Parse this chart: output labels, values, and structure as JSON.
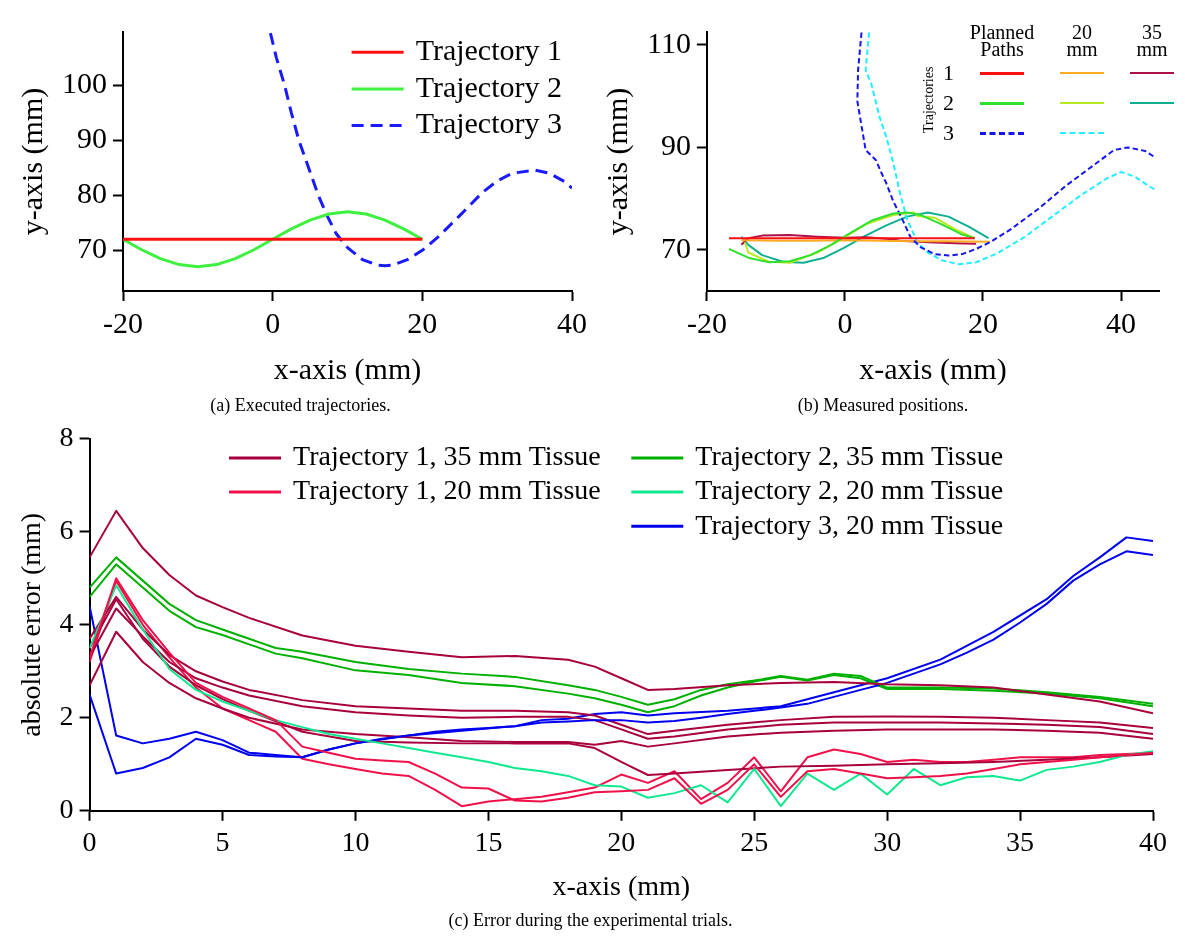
{
  "chart_data": [
    {
      "type": "line",
      "xlabel": "x-axis (mm)",
      "ylabel": "y-axis (mm)",
      "xlim": [
        -20,
        40
      ],
      "ylim": [
        62.6,
        109.7
      ],
      "xticks": [
        -20,
        0,
        20,
        40
      ],
      "yticks": [
        70,
        80,
        90,
        100
      ],
      "legend": "top right",
      "marker": "none",
      "annotations": [
        "(a) Executed trajectories."
      ],
      "series": [
        {
          "name": "Trajectory 1",
          "color": "#ff1010",
          "line_style": "solid",
          "x": [
            -20,
            20
          ],
          "values": [
            72,
            72
          ]
        },
        {
          "name": "Trajectory 2",
          "color": "#40f040",
          "line_style": "solid",
          "x": [
            -20,
            -17.5,
            -15,
            -12.5,
            -10,
            -7.5,
            -5,
            -2.5,
            0,
            2.5,
            5,
            7.5,
            10,
            12.5,
            15,
            17.5,
            20
          ],
          "values": [
            72,
            70.1,
            68.5,
            67.4,
            67,
            67.4,
            68.5,
            70.1,
            72,
            73.9,
            75.5,
            76.6,
            77,
            76.6,
            75.5,
            73.9,
            72
          ]
        },
        {
          "name": "Trajectory 3",
          "color": "#1a1aff",
          "line_style": "dashed",
          "x": [
            -0.3,
            0.5,
            1.6,
            2.5,
            3.5,
            4.8,
            6.1,
            7.2,
            8.5,
            10,
            12,
            14,
            15,
            16,
            18,
            20,
            22,
            25,
            28,
            30,
            32,
            35,
            37,
            39,
            40
          ],
          "values": [
            109.5,
            105,
            100,
            95,
            90,
            85,
            80,
            76.5,
            73,
            70.5,
            68.3,
            67.3,
            67.2,
            67.3,
            68.3,
            70,
            72.3,
            76.3,
            80.5,
            82.6,
            84,
            84.6,
            84,
            82.5,
            81.3
          ]
        }
      ]
    },
    {
      "type": "line",
      "xlabel": "x-axis (mm)",
      "ylabel": "y-axis (mm)",
      "xlim": [
        -20,
        45.5
      ],
      "ylim": [
        62,
        112.5
      ],
      "xticks": [
        -20,
        0,
        20,
        40
      ],
      "yticks": [
        70,
        90,
        110
      ],
      "legend": "top right",
      "legend_title": "Trajectories",
      "marker": "none",
      "annotations": [
        "Planned Paths",
        "20 mm",
        "35 mm",
        "1",
        "2",
        "3",
        "(b) Measured positions."
      ],
      "series": [
        {
          "color": "#ff1010",
          "line_style": "solid",
          "x": [
            -16.8,
            18.8
          ],
          "values": [
            72.3,
            72.3
          ]
        },
        {
          "color": "#30e030",
          "line_style": "solid",
          "x": [
            -16.8,
            -14,
            -11,
            -8,
            -5,
            -2,
            1,
            4,
            7,
            9,
            11,
            14,
            17,
            18.8
          ],
          "values": [
            70.2,
            68.5,
            67.6,
            67.8,
            69,
            71,
            73.5,
            75.8,
            77.1,
            77.3,
            76.8,
            75,
            73,
            72.3
          ]
        },
        {
          "color": "#1515ee",
          "line_style": "dashed",
          "x": [
            2.4,
            1.9,
            1.8,
            2.3,
            3,
            4.5,
            5.3,
            6,
            7,
            8.3,
            9.5,
            11,
            13,
            15,
            17,
            19,
            21,
            24,
            28,
            32,
            36,
            39,
            41,
            43.5,
            45
          ],
          "values": [
            112.4,
            105,
            99,
            95,
            89.5,
            87.5,
            85,
            83,
            79.5,
            76,
            72.5,
            70.5,
            69.2,
            68.9,
            69.2,
            70.2,
            71.5,
            74,
            78,
            82.5,
            86.5,
            89.5,
            90,
            89.3,
            88
          ]
        },
        {
          "color": "#ffaa22",
          "line_style": "solid",
          "x": [
            -15,
            -10,
            -5,
            0,
            5,
            10,
            15,
            21
          ],
          "values": [
            71.9,
            71.8,
            71.8,
            71.9,
            71.8,
            71.7,
            71.7,
            71.6
          ]
        },
        {
          "color": "#b8ea22",
          "line_style": "solid",
          "x": [
            -14.5,
            -14,
            -11,
            -8,
            -4,
            0,
            3,
            7,
            10,
            10.5,
            13,
            16,
            18.8
          ],
          "values": [
            71.5,
            69.5,
            67.7,
            67.5,
            69.5,
            72.5,
            75,
            76.8,
            77.3,
            76.6,
            76.3,
            74,
            72.3
          ]
        },
        {
          "color": "#22eeff",
          "line_style": "dashed",
          "x": [
            3.5,
            3,
            3.8,
            5,
            6,
            7,
            8,
            9,
            10.5,
            12,
            14,
            16.5,
            19,
            22,
            26,
            30,
            34,
            38,
            40,
            42,
            44,
            45
          ],
          "values": [
            112.4,
            105,
            102.5,
            96,
            92,
            87,
            81,
            76,
            71.5,
            69.5,
            68,
            67.2,
            67.6,
            69.3,
            72.5,
            76.5,
            80.5,
            84,
            85.2,
            84.3,
            82.5,
            81.7
          ]
        },
        {
          "color": "#b0104a",
          "line_style": "solid",
          "x": [
            -15,
            -14,
            -12,
            -8,
            -4,
            0,
            3,
            6,
            8,
            12,
            16,
            19
          ],
          "values": [
            71,
            72.3,
            72.8,
            72.9,
            72.6,
            72.4,
            72.5,
            72.2,
            71.8,
            71.5,
            71.3,
            71.2
          ]
        },
        {
          "color": "#10b090",
          "line_style": "solid",
          "x": [
            -15,
            -14,
            -12,
            -9,
            -6,
            -3,
            0,
            3,
            6,
            9,
            12,
            15,
            18,
            20.8
          ],
          "values": [
            72.6,
            71,
            69,
            67.7,
            67.5,
            68.5,
            70.5,
            72.8,
            74.8,
            76.5,
            77.3,
            76.5,
            74.5,
            72.3
          ]
        }
      ]
    },
    {
      "type": "line",
      "xlabel": "x-axis (mm)",
      "ylabel": "absolute error (mm)",
      "xlim": [
        0,
        40
      ],
      "ylim": [
        0,
        8
      ],
      "xticks": [
        0,
        5,
        10,
        15,
        20,
        25,
        30,
        35,
        40
      ],
      "yticks": [
        0,
        2,
        4,
        6,
        8
      ],
      "legend": "top",
      "marker": "none",
      "line_style": "solid",
      "annotations": [
        "(c) Error during the experimental trials."
      ],
      "x": [
        0,
        1,
        2,
        3,
        4,
        5,
        6,
        7,
        8,
        9,
        10,
        11,
        12,
        13,
        14,
        15,
        16,
        17,
        18,
        19,
        20,
        21,
        22,
        23,
        24,
        25,
        26,
        27,
        28,
        29,
        30,
        31,
        32,
        33,
        34,
        35,
        36,
        37,
        38,
        39,
        40
      ],
      "series": [
        {
          "name": "Trajectory 1, 35 mm Tissue",
          "color": "#a8003c",
          "x": [
            0,
            1,
            2,
            3,
            4,
            5,
            6,
            8,
            10,
            12,
            14,
            16,
            18,
            19,
            20,
            21,
            22,
            24,
            26,
            28,
            30,
            32,
            34,
            36,
            38,
            40
          ],
          "values": [
            5.45,
            6.45,
            5.65,
            5.07,
            4.63,
            4.38,
            4.15,
            3.77,
            3.55,
            3.42,
            3.3,
            3.33,
            3.25,
            3.1,
            2.85,
            2.6,
            2.62,
            2.7,
            2.75,
            2.77,
            2.72,
            2.7,
            2.65,
            2.5,
            2.35,
            2.1
          ]
        },
        {
          "name": "Trajectory 1, 20 mm Tissue",
          "color": "#f0104a",
          "values": [
            3.3,
            5.0,
            4.1,
            3.4,
            2.75,
            2.45,
            2.2,
            1.95,
            1.38,
            1.25,
            1.12,
            1.08,
            1.05,
            0.8,
            0.5,
            0.48,
            0.22,
            0.2,
            0.28,
            0.4,
            0.42,
            0.45,
            0.7,
            0.15,
            0.45,
            1.0,
            0.3,
            0.85,
            0.9,
            0.8,
            0.7,
            0.72,
            0.75,
            0.8,
            0.9,
            1.0,
            1.05,
            1.1,
            1.15,
            1.2,
            1.25
          ]
        },
        {
          "name": "Trajectory 2, 35 mm Tissue",
          "color": "#00b000",
          "x": [
            0,
            1,
            2,
            3,
            4,
            5,
            6,
            7,
            8,
            10,
            12,
            14,
            16,
            18,
            19,
            20,
            21,
            22,
            23,
            24,
            25,
            26,
            27,
            28,
            29,
            30,
            32,
            34,
            36,
            38,
            40
          ],
          "values": [
            4.8,
            5.45,
            4.95,
            4.45,
            4.1,
            3.9,
            3.7,
            3.5,
            3.42,
            3.2,
            3.05,
            2.95,
            2.88,
            2.7,
            2.6,
            2.45,
            2.28,
            2.4,
            2.6,
            2.72,
            2.8,
            2.9,
            2.82,
            2.95,
            2.9,
            2.65,
            2.65,
            2.63,
            2.55,
            2.45,
            2.3
          ]
        },
        {
          "name": "Trajectory 2, 20 mm Tissue",
          "color": "#10e890",
          "values": [
            3.5,
            4.85,
            3.9,
            3.05,
            2.6,
            2.35,
            2.15,
            1.95,
            1.8,
            1.65,
            1.55,
            1.45,
            1.35,
            1.25,
            1.15,
            1.05,
            0.92,
            0.85,
            0.75,
            0.55,
            0.52,
            0.28,
            0.38,
            0.55,
            0.18,
            0.9,
            0.1,
            0.8,
            0.45,
            0.8,
            0.35,
            0.9,
            0.55,
            0.72,
            0.75,
            0.65,
            0.88,
            0.95,
            1.05,
            1.2,
            1.28
          ]
        },
        {
          "name": "Trajectory 3, 20 mm Tissue",
          "color": "#0000ee",
          "values": [
            2.5,
            0.8,
            0.92,
            1.15,
            1.55,
            1.42,
            1.2,
            1.17,
            1.15,
            1.32,
            1.45,
            1.55,
            1.62,
            1.7,
            1.75,
            1.78,
            1.82,
            1.9,
            1.92,
            1.95,
            1.95,
            1.9,
            1.93,
            2.0,
            2.08,
            2.15,
            2.22,
            2.3,
            2.45,
            2.6,
            2.75,
            2.95,
            3.15,
            3.4,
            3.68,
            4.05,
            4.45,
            4.95,
            5.3,
            5.58,
            5.5
          ]
        },
        {
          "color": "#a8003c",
          "x": [
            0,
            1,
            2,
            3,
            4,
            5,
            6,
            8,
            10,
            12,
            14,
            16,
            18,
            19,
            20,
            21,
            22,
            24,
            26,
            28,
            30,
            32,
            34,
            36,
            38,
            40
          ],
          "values": [
            3.7,
            4.6,
            3.9,
            3.35,
            3.0,
            2.78,
            2.6,
            2.38,
            2.25,
            2.2,
            2.15,
            2.15,
            2.12,
            2.05,
            1.85,
            1.65,
            1.72,
            1.85,
            1.95,
            2.02,
            2.03,
            2.02,
            2.0,
            1.95,
            1.9,
            1.78
          ]
        },
        {
          "color": "#a8003c",
          "x": [
            0,
            1,
            2,
            3,
            4,
            5,
            6,
            8,
            10,
            12,
            14,
            16,
            18,
            19,
            20,
            21,
            22,
            24,
            26,
            28,
            30,
            32,
            34,
            36,
            38,
            40
          ],
          "values": [
            3.3,
            4.35,
            3.75,
            3.2,
            2.85,
            2.65,
            2.48,
            2.25,
            2.12,
            2.05,
            2.0,
            2.02,
            2.02,
            1.95,
            1.75,
            1.55,
            1.6,
            1.75,
            1.85,
            1.9,
            1.9,
            1.9,
            1.88,
            1.85,
            1.8,
            1.65
          ]
        },
        {
          "color": "#a8003c",
          "x": [
            0,
            1,
            2,
            3,
            4,
            5,
            6,
            8,
            10,
            12,
            14,
            16,
            18,
            19,
            20,
            21,
            22,
            24,
            26,
            28,
            30,
            32,
            34,
            36,
            38,
            40
          ],
          "values": [
            2.7,
            3.85,
            3.2,
            2.75,
            2.42,
            2.2,
            2.0,
            1.75,
            1.65,
            1.58,
            1.5,
            1.48,
            1.48,
            1.42,
            1.5,
            1.38,
            1.45,
            1.6,
            1.68,
            1.72,
            1.75,
            1.75,
            1.75,
            1.72,
            1.68,
            1.55
          ]
        },
        {
          "color": "#a8003c",
          "x": [
            0,
            1,
            2,
            3,
            4,
            5,
            6,
            8,
            10,
            12,
            14,
            16,
            18,
            19,
            20,
            21,
            22,
            24,
            26,
            28,
            30,
            32,
            34,
            36,
            38,
            40
          ],
          "values": [
            3.5,
            4.55,
            3.7,
            3.1,
            2.7,
            2.4,
            2.15,
            1.7,
            1.5,
            1.47,
            1.45,
            1.45,
            1.45,
            1.35,
            1.05,
            0.77,
            0.8,
            0.88,
            0.95,
            0.97,
            1.0,
            1.02,
            1.05,
            1.1,
            1.15,
            1.22
          ]
        },
        {
          "color": "#f0104a",
          "values": [
            3.2,
            4.95,
            4.0,
            3.3,
            2.65,
            2.2,
            1.95,
            1.7,
            1.12,
            1.0,
            0.9,
            0.8,
            0.75,
            0.45,
            0.1,
            0.2,
            0.25,
            0.3,
            0.4,
            0.5,
            0.78,
            0.6,
            0.85,
            0.25,
            0.6,
            1.15,
            0.42,
            1.15,
            1.32,
            1.22,
            1.05,
            1.1,
            1.05,
            1.05,
            1.1,
            1.15,
            1.15,
            1.15,
            1.2,
            1.22,
            1.25
          ]
        },
        {
          "color": "#00b000",
          "x": [
            0,
            1,
            2,
            3,
            4,
            5,
            6,
            7,
            8,
            10,
            12,
            14,
            16,
            18,
            19,
            20,
            21,
            22,
            23,
            24,
            25,
            26,
            27,
            28,
            29,
            30,
            32,
            34,
            36,
            38,
            40
          ],
          "values": [
            4.6,
            5.3,
            4.8,
            4.3,
            3.95,
            3.78,
            3.58,
            3.38,
            3.28,
            3.02,
            2.92,
            2.75,
            2.68,
            2.52,
            2.42,
            2.28,
            2.12,
            2.25,
            2.48,
            2.65,
            2.78,
            2.88,
            2.8,
            2.92,
            2.85,
            2.62,
            2.62,
            2.58,
            2.52,
            2.42,
            2.25
          ]
        },
        {
          "color": "#0000ee",
          "x": [
            0,
            1,
            2,
            3,
            4,
            5,
            6,
            7,
            8,
            9,
            10,
            12,
            14,
            16,
            17,
            18,
            19,
            20,
            21,
            22,
            24,
            26,
            28,
            30,
            32,
            34,
            36,
            37,
            38,
            39,
            40
          ],
          "values": [
            4.4,
            1.62,
            1.45,
            1.55,
            1.7,
            1.52,
            1.25,
            1.2,
            1.15,
            1.32,
            1.45,
            1.62,
            1.72,
            1.82,
            1.95,
            1.98,
            2.08,
            2.12,
            2.05,
            2.1,
            2.15,
            2.25,
            2.55,
            2.85,
            3.25,
            3.85,
            4.55,
            5.05,
            5.45,
            5.88,
            5.8
          ]
        }
      ]
    }
  ]
}
